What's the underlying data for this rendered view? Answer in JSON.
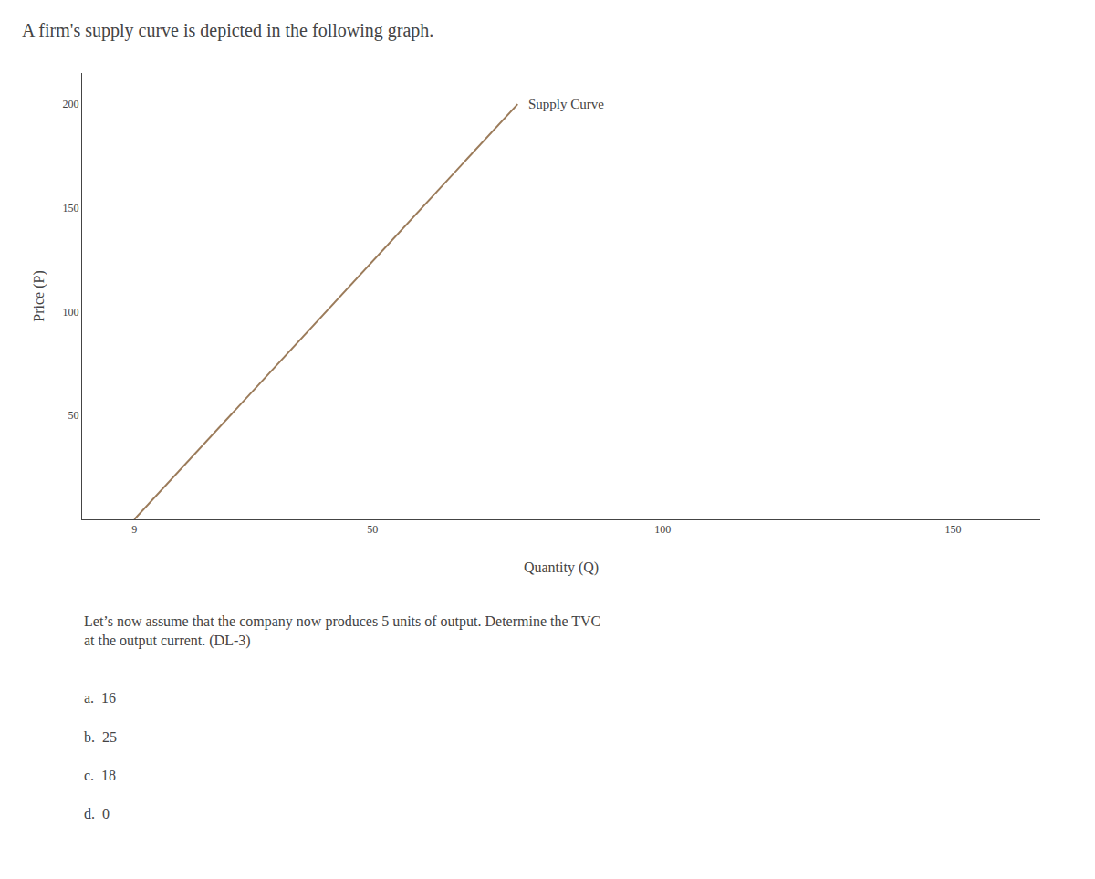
{
  "chart_data": {
    "type": "line",
    "title": "A firm's supply curve is depicted in the following graph.",
    "xlabel": "Quantity (Q)",
    "ylabel": "Price (P)",
    "x": [
      9,
      75
    ],
    "values": [
      0,
      200
    ],
    "color": "#9b7b5a",
    "xlim": [
      0,
      165
    ],
    "ylim": [
      0,
      215
    ],
    "xticks": [
      9,
      50,
      100,
      150
    ],
    "yticks": [
      50,
      100,
      150,
      200
    ],
    "grid": false,
    "line_label": "Supply Curve",
    "question": "Let’s now assume that the company now produces 5 units of output. Determine the TVC\nat the output current. (DL-3)",
    "answers": [
      "a.  16",
      "b.  25",
      "c.  18",
      "d.  0"
    ]
  }
}
